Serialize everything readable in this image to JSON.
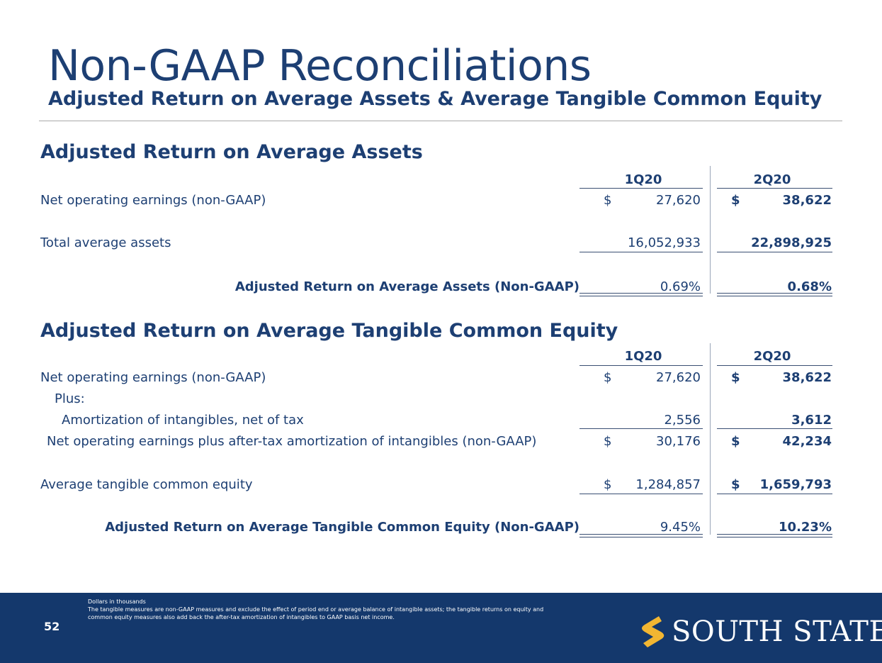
{
  "title": "Non-GAAP Reconciliations",
  "subtitle": "Adjusted Return on Average Assets & Average Tangible Common Equity",
  "columns": [
    "1Q20",
    "2Q20"
  ],
  "section1": {
    "title": "Adjusted Return on Average Assets",
    "rows": [
      {
        "label": "Net operating earnings (non-GAAP)",
        "currency": "$",
        "q1": "27,620",
        "q2": "38,622"
      },
      {
        "label": "Total average assets",
        "currency": "",
        "q1": "16,052,933",
        "q2": "22,898,925"
      },
      {
        "label": "Adjusted Return on Average Assets (Non-GAAP)",
        "currency": "",
        "q1": "0.69%",
        "q2": "0.68%"
      }
    ]
  },
  "section2": {
    "title": "Adjusted Return on Average Tangible Common Equity",
    "rows": [
      {
        "label": "Net operating earnings (non-GAAP)",
        "currency": "$",
        "q1": "27,620",
        "q2": "38,622"
      },
      {
        "label": "Plus:"
      },
      {
        "label": "Amortization of intangibles, net of tax",
        "currency": "",
        "q1": "2,556",
        "q2": "3,612"
      },
      {
        "label": "Net operating earnings plus after-tax amortization of intangibles (non-GAAP)",
        "currency": "$",
        "q1": "30,176",
        "q2": "42,234"
      },
      {
        "label": "Average tangible common equity",
        "currency": "$",
        "q1": "1,284,857",
        "q2": "1,659,793"
      },
      {
        "label": "Adjusted Return on Average Tangible Common Equity (Non-GAAP)",
        "currency": "",
        "q1": "9.45%",
        "q2": "10.23%"
      }
    ]
  },
  "footer": {
    "page_number": "52",
    "notes": [
      "Dollars in thousands",
      "The tangible measures are non-GAAP measures and exclude the effect of period end or average balance of intangible assets; the tangible returns on equity and",
      "common equity measures also add back the after-tax amortization of intangibles to GAAP basis net income."
    ],
    "logo_text": "SOUTH STATE",
    "logo_icon": "south-state-s-logo-icon",
    "colors": {
      "footer_bg": "#14386c",
      "logo_gold": "#f2b632",
      "text_navy": "#1d3f73"
    }
  }
}
